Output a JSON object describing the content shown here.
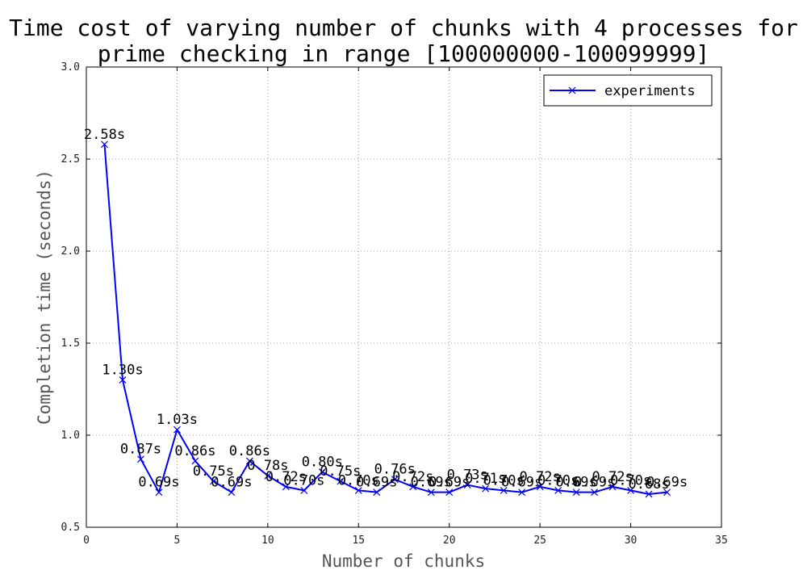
{
  "chart_data": {
    "type": "line",
    "title_line1": "Time cost of varying number of chunks with 4 processes for",
    "title_line2": "prime checking in range [100000000-100099999]",
    "xlabel": "Number of chunks",
    "ylabel": "Completion time (seconds)",
    "xlim": [
      0,
      35
    ],
    "ylim": [
      0.5,
      3.0
    ],
    "xticks": [
      0,
      5,
      10,
      15,
      20,
      25,
      30,
      35
    ],
    "yticks": [
      0.5,
      1.0,
      1.5,
      2.0,
      2.5,
      3.0
    ],
    "xtick_labels": [
      "0",
      "5",
      "10",
      "15",
      "20",
      "25",
      "30",
      "35"
    ],
    "ytick_labels": [
      "0.5",
      "1.0",
      "1.5",
      "2.0",
      "2.5",
      "3.0"
    ],
    "grid": true,
    "legend_position": "top-right",
    "series": [
      {
        "name": "experiments",
        "color": "#0000ff",
        "marker": "x",
        "x": [
          1,
          2,
          3,
          4,
          5,
          6,
          7,
          8,
          9,
          10,
          11,
          12,
          13,
          14,
          15,
          16,
          17,
          18,
          19,
          20,
          21,
          22,
          23,
          24,
          25,
          26,
          27,
          28,
          29,
          30,
          31,
          32
        ],
        "y": [
          2.58,
          1.3,
          0.87,
          0.69,
          1.03,
          0.86,
          0.75,
          0.69,
          0.86,
          0.78,
          0.72,
          0.7,
          0.8,
          0.75,
          0.7,
          0.69,
          0.76,
          0.72,
          0.69,
          0.69,
          0.73,
          0.71,
          0.7,
          0.69,
          0.72,
          0.7,
          0.69,
          0.69,
          0.72,
          0.7,
          0.68,
          0.69
        ],
        "labels": [
          "2.58s",
          "1.30s",
          "0.87s",
          "0.69s",
          "1.03s",
          "0.86s",
          "0.75s",
          "0.69s",
          "0.86s",
          "0.78s",
          "0.72s",
          "0.70s",
          "0.80s",
          "0.75s",
          "0.70s",
          "0.69s",
          "0.76s",
          "0.72s",
          "0.69s",
          "0.69s",
          "0.73s",
          "0.71s",
          "0.70s",
          "0.69s",
          "0.72s",
          "0.70s",
          "0.69s",
          "0.69s",
          "0.72s",
          "0.70s",
          "0.68s",
          "0.69s"
        ]
      }
    ]
  }
}
